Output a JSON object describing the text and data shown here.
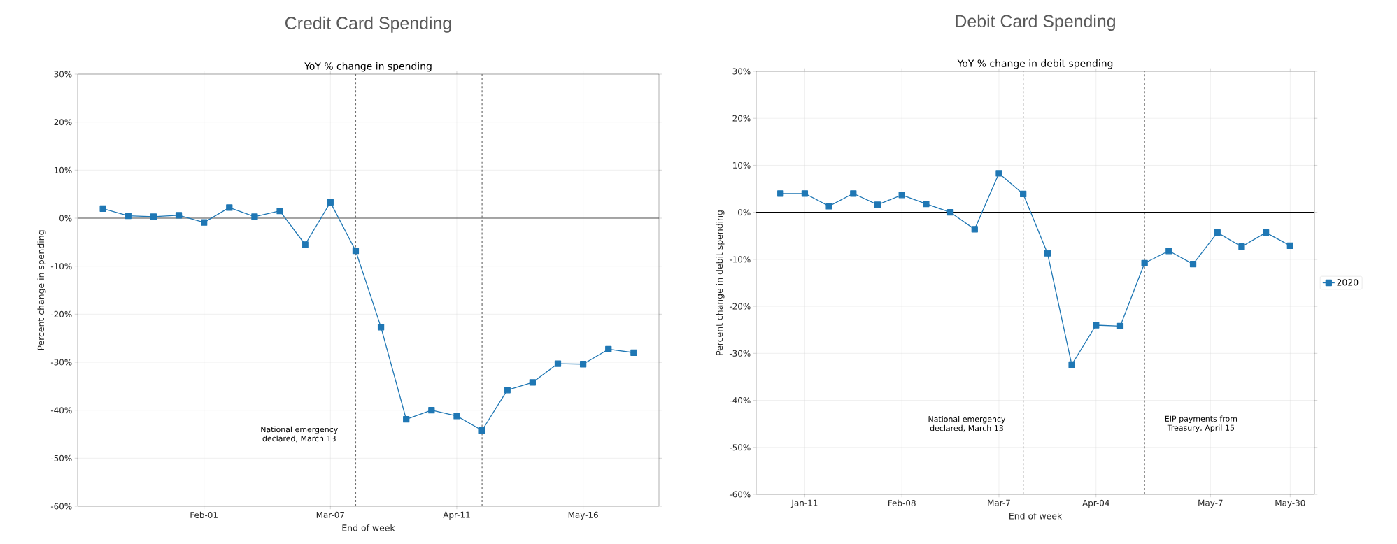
{
  "chart_data": [
    {
      "type": "line",
      "title": "Credit Card Spending",
      "subtitle": "YoY % change in spending",
      "xlabel": "End of week",
      "ylabel": "Percent change in spending",
      "x": [
        "2020-01-04",
        "2020-01-11",
        "2020-01-18",
        "2020-01-25",
        "2020-02-01",
        "2020-02-08",
        "2020-02-15",
        "2020-02-22",
        "2020-02-29",
        "2020-03-07",
        "2020-03-14",
        "2020-03-21",
        "2020-03-28",
        "2020-04-04",
        "2020-04-11",
        "2020-04-18",
        "2020-04-25",
        "2020-05-02",
        "2020-05-09",
        "2020-05-16",
        "2020-05-23",
        "2020-05-30"
      ],
      "series": [
        {
          "color": "#1f77b4",
          "values": [
            2.0,
            0.5,
            0.3,
            0.6,
            -0.9,
            2.2,
            0.3,
            1.5,
            -5.5,
            3.3,
            -6.8,
            -22.7,
            -41.9,
            -40.0,
            -41.2,
            -44.2,
            -35.8,
            -34.2,
            -30.3,
            -30.4,
            -27.3,
            -28.0
          ]
        }
      ],
      "xlim": [
        "2019-12-28",
        "2020-06-06"
      ],
      "xticks": [
        {
          "value": "2020-02-01",
          "label": "Feb-01"
        },
        {
          "value": "2020-03-07",
          "label": "Mar-07"
        },
        {
          "value": "2020-04-11",
          "label": "Apr-11"
        },
        {
          "value": "2020-05-16",
          "label": "May-16"
        }
      ],
      "ylim": [
        -60,
        30
      ],
      "yticks": [
        {
          "value": -60,
          "label": "-60%"
        },
        {
          "value": -50,
          "label": "-50%"
        },
        {
          "value": -40,
          "label": "-40%"
        },
        {
          "value": -30,
          "label": "-30%"
        },
        {
          "value": -20,
          "label": "-20%"
        },
        {
          "value": -10,
          "label": "-10%"
        },
        {
          "value": 0,
          "label": "0%"
        },
        {
          "value": 10,
          "label": "10%"
        },
        {
          "value": 20,
          "label": "20%"
        },
        {
          "value": 30,
          "label": "30%"
        }
      ],
      "ref_lines": [
        {
          "axis": "x",
          "value": "2020-03-14",
          "label": "National emergency declared, March 13",
          "color": "#707070",
          "line_style": "dashed"
        },
        {
          "axis": "x",
          "value": "2020-04-18",
          "color": "#707070",
          "line_style": "dashed"
        },
        {
          "axis": "y",
          "value": 0,
          "color": "#404040",
          "line_style": "solid"
        }
      ],
      "grid": true,
      "marker": "square",
      "line_style": "solid",
      "legend": false
    },
    {
      "type": "line",
      "title": "Debit Card Spending",
      "subtitle": "YoY % change in debit spending",
      "xlabel": "End of week",
      "ylabel": "Percent change in debit spending",
      "x": [
        "2020-01-04",
        "2020-01-11",
        "2020-01-18",
        "2020-01-25",
        "2020-02-01",
        "2020-02-08",
        "2020-02-15",
        "2020-02-22",
        "2020-02-29",
        "2020-03-07",
        "2020-03-14",
        "2020-03-21",
        "2020-03-28",
        "2020-04-04",
        "2020-04-11",
        "2020-04-18",
        "2020-04-25",
        "2020-05-02",
        "2020-05-09",
        "2020-05-16",
        "2020-05-23",
        "2020-05-30"
      ],
      "series": [
        {
          "name": "2020",
          "color": "#1f77b4",
          "values": [
            4.0,
            4.0,
            1.3,
            4.0,
            1.6,
            3.7,
            1.8,
            0.0,
            -3.6,
            8.3,
            3.9,
            -8.7,
            -32.4,
            -24.0,
            -24.2,
            -10.8,
            -8.2,
            -11.0,
            -4.3,
            -7.3,
            -4.3,
            -7.1
          ]
        }
      ],
      "xlim": [
        "2019-12-28",
        "2020-06-06"
      ],
      "xticks": [
        {
          "value": "2020-01-11",
          "label": "Jan-11"
        },
        {
          "value": "2020-02-08",
          "label": "Feb-08"
        },
        {
          "value": "2020-03-07",
          "label": "Mar-7"
        },
        {
          "value": "2020-04-04",
          "label": "Apr-04"
        },
        {
          "value": "2020-05-07",
          "label": "May-7"
        },
        {
          "value": "2020-05-30",
          "label": "May-30"
        }
      ],
      "ylim": [
        -60,
        30
      ],
      "yticks": [
        {
          "value": -60,
          "label": "-60%"
        },
        {
          "value": -50,
          "label": "-50%"
        },
        {
          "value": -40,
          "label": "-40%"
        },
        {
          "value": -30,
          "label": "-30%"
        },
        {
          "value": -20,
          "label": "-20%"
        },
        {
          "value": -10,
          "label": "-10%"
        },
        {
          "value": 0,
          "label": "0%"
        },
        {
          "value": 10,
          "label": "10%"
        },
        {
          "value": 20,
          "label": "20%"
        },
        {
          "value": 30,
          "label": "30%"
        }
      ],
      "ref_lines": [
        {
          "axis": "x",
          "value": "2020-03-14",
          "label": "National emergency declared, March 13",
          "color": "#707070",
          "line_style": "dashed"
        },
        {
          "axis": "x",
          "value": "2020-04-18",
          "label": "EIP payments from Treasury, April 15",
          "color": "#707070",
          "line_style": "dashed"
        },
        {
          "axis": "y",
          "value": 0,
          "color": "#000000",
          "line_style": "solid"
        }
      ],
      "grid": true,
      "marker": "square",
      "line_style": "solid",
      "legend": "right"
    }
  ]
}
